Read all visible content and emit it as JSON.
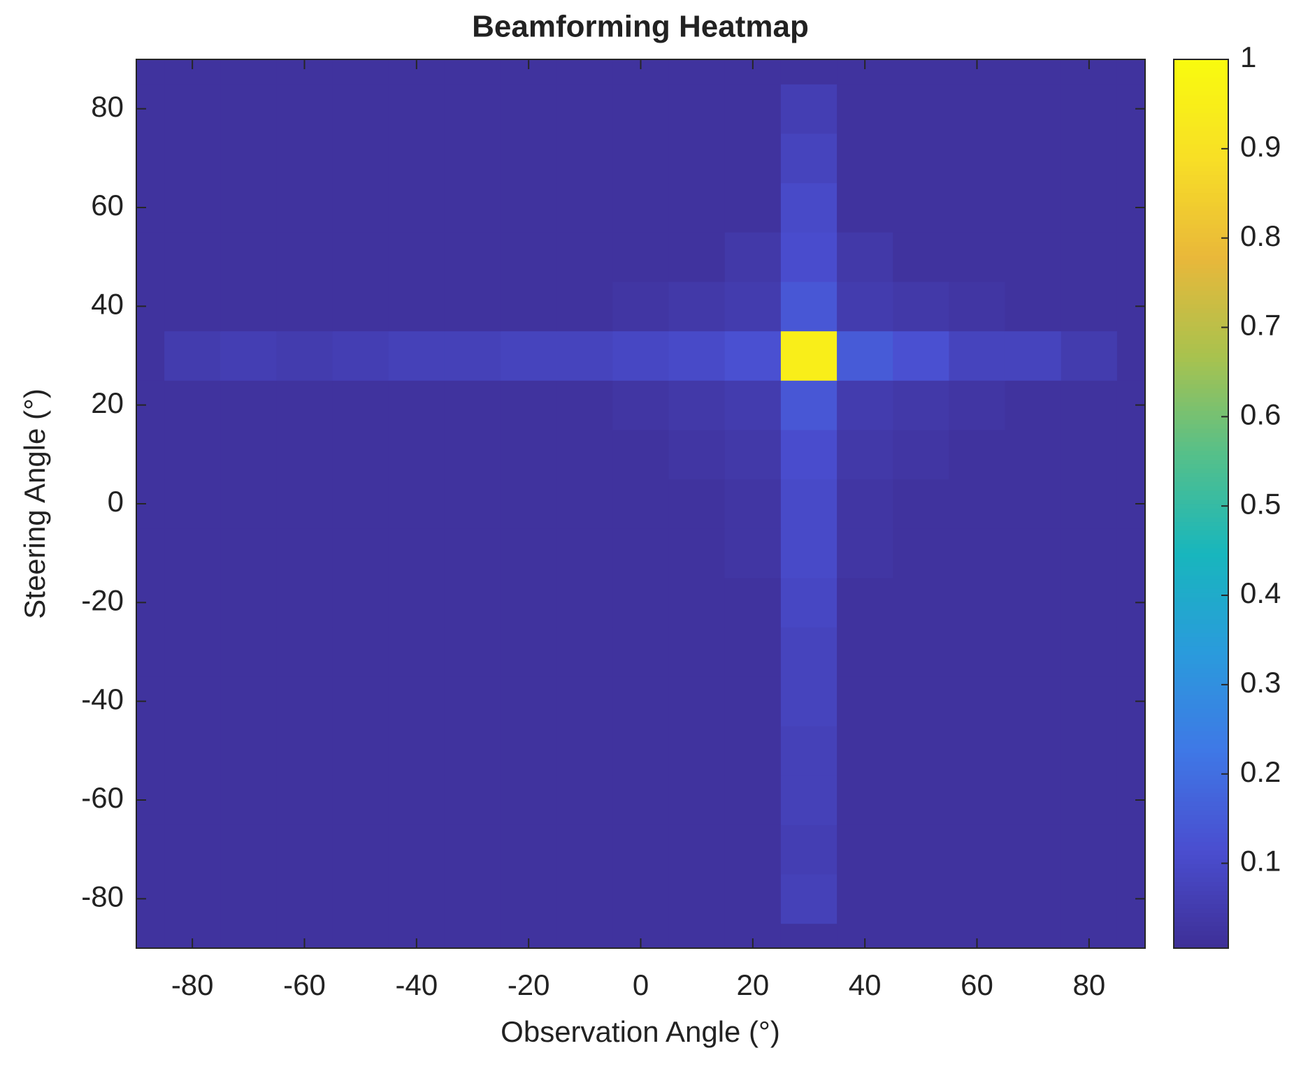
{
  "chart_data": {
    "type": "heatmap",
    "title": "Beamforming Heatmap",
    "xlabel": "Observation Angle (°)",
    "ylabel": "Steering Angle (°)",
    "x": [
      -90,
      -80,
      -70,
      -60,
      -50,
      -40,
      -30,
      -20,
      -10,
      0,
      10,
      20,
      30,
      40,
      50,
      60,
      70,
      80,
      90
    ],
    "y": [
      -90,
      -80,
      -70,
      -60,
      -50,
      -40,
      -30,
      -20,
      -10,
      0,
      10,
      20,
      30,
      40,
      50,
      60,
      70,
      80,
      90
    ],
    "z": [
      [
        0.02,
        0.02,
        0.02,
        0.02,
        0.02,
        0.02,
        0.02,
        0.02,
        0.02,
        0.02,
        0.02,
        0.02,
        0.02,
        0.02,
        0.02,
        0.02,
        0.02,
        0.02,
        0.02
      ],
      [
        0.02,
        0.02,
        0.02,
        0.02,
        0.02,
        0.02,
        0.02,
        0.02,
        0.02,
        0.02,
        0.02,
        0.02,
        0.07,
        0.02,
        0.02,
        0.02,
        0.02,
        0.02,
        0.02
      ],
      [
        0.02,
        0.02,
        0.02,
        0.02,
        0.02,
        0.02,
        0.02,
        0.02,
        0.02,
        0.02,
        0.02,
        0.02,
        0.06,
        0.02,
        0.02,
        0.02,
        0.02,
        0.02,
        0.02
      ],
      [
        0.02,
        0.02,
        0.02,
        0.02,
        0.02,
        0.02,
        0.02,
        0.02,
        0.02,
        0.02,
        0.02,
        0.02,
        0.07,
        0.02,
        0.02,
        0.02,
        0.02,
        0.02,
        0.02
      ],
      [
        0.02,
        0.02,
        0.02,
        0.02,
        0.02,
        0.02,
        0.02,
        0.02,
        0.02,
        0.02,
        0.02,
        0.02,
        0.07,
        0.02,
        0.02,
        0.02,
        0.02,
        0.02,
        0.02
      ],
      [
        0.02,
        0.02,
        0.02,
        0.02,
        0.02,
        0.02,
        0.02,
        0.02,
        0.02,
        0.02,
        0.02,
        0.02,
        0.08,
        0.02,
        0.02,
        0.02,
        0.02,
        0.02,
        0.02
      ],
      [
        0.02,
        0.02,
        0.02,
        0.02,
        0.02,
        0.02,
        0.02,
        0.02,
        0.02,
        0.02,
        0.02,
        0.02,
        0.08,
        0.02,
        0.02,
        0.02,
        0.02,
        0.02,
        0.02
      ],
      [
        0.02,
        0.02,
        0.02,
        0.02,
        0.02,
        0.02,
        0.02,
        0.02,
        0.02,
        0.02,
        0.02,
        0.02,
        0.09,
        0.02,
        0.02,
        0.02,
        0.02,
        0.02,
        0.02
      ],
      [
        0.02,
        0.02,
        0.02,
        0.02,
        0.02,
        0.02,
        0.02,
        0.02,
        0.02,
        0.02,
        0.02,
        0.03,
        0.1,
        0.03,
        0.02,
        0.02,
        0.02,
        0.02,
        0.02
      ],
      [
        0.02,
        0.02,
        0.02,
        0.02,
        0.02,
        0.02,
        0.02,
        0.02,
        0.02,
        0.02,
        0.02,
        0.03,
        0.1,
        0.03,
        0.02,
        0.02,
        0.02,
        0.02,
        0.02
      ],
      [
        0.02,
        0.02,
        0.02,
        0.02,
        0.02,
        0.02,
        0.02,
        0.02,
        0.02,
        0.02,
        0.03,
        0.04,
        0.11,
        0.04,
        0.03,
        0.02,
        0.02,
        0.02,
        0.02
      ],
      [
        0.02,
        0.02,
        0.02,
        0.02,
        0.02,
        0.02,
        0.02,
        0.02,
        0.02,
        0.03,
        0.04,
        0.05,
        0.14,
        0.05,
        0.04,
        0.03,
        0.02,
        0.02,
        0.02
      ],
      [
        0.02,
        0.05,
        0.06,
        0.05,
        0.06,
        0.07,
        0.07,
        0.08,
        0.08,
        0.09,
        0.1,
        0.12,
        0.95,
        0.15,
        0.12,
        0.08,
        0.08,
        0.05,
        0.02
      ],
      [
        0.02,
        0.02,
        0.02,
        0.02,
        0.02,
        0.02,
        0.02,
        0.02,
        0.02,
        0.03,
        0.04,
        0.05,
        0.14,
        0.05,
        0.04,
        0.03,
        0.02,
        0.02,
        0.02
      ],
      [
        0.02,
        0.02,
        0.02,
        0.02,
        0.02,
        0.02,
        0.02,
        0.02,
        0.02,
        0.02,
        0.02,
        0.04,
        0.11,
        0.04,
        0.02,
        0.02,
        0.02,
        0.02,
        0.02
      ],
      [
        0.02,
        0.02,
        0.02,
        0.02,
        0.02,
        0.02,
        0.02,
        0.02,
        0.02,
        0.02,
        0.02,
        0.02,
        0.1,
        0.02,
        0.02,
        0.02,
        0.02,
        0.02,
        0.02
      ],
      [
        0.02,
        0.02,
        0.02,
        0.02,
        0.02,
        0.02,
        0.02,
        0.02,
        0.02,
        0.02,
        0.02,
        0.02,
        0.08,
        0.02,
        0.02,
        0.02,
        0.02,
        0.02,
        0.02
      ],
      [
        0.02,
        0.02,
        0.02,
        0.02,
        0.02,
        0.02,
        0.02,
        0.02,
        0.02,
        0.02,
        0.02,
        0.02,
        0.06,
        0.02,
        0.02,
        0.02,
        0.02,
        0.02,
        0.02
      ],
      [
        0.02,
        0.02,
        0.02,
        0.02,
        0.02,
        0.02,
        0.02,
        0.02,
        0.02,
        0.02,
        0.02,
        0.02,
        0.02,
        0.02,
        0.02,
        0.02,
        0.02,
        0.02,
        0.02
      ]
    ],
    "xlim": [
      -90,
      90
    ],
    "ylim": [
      -90,
      90
    ],
    "xticks": [
      -80,
      -60,
      -40,
      -20,
      0,
      20,
      40,
      60,
      80
    ],
    "yticks": [
      -80,
      -60,
      -40,
      -20,
      0,
      20,
      40,
      60,
      80
    ],
    "clim": [
      0.005,
      1
    ],
    "cticks": [
      0.1,
      0.2,
      0.3,
      0.4,
      0.5,
      0.6,
      0.7,
      0.8,
      0.9,
      1
    ],
    "colormap": [
      "#3e2f96",
      "#4a4ed0",
      "#3f78e6",
      "#2a9bdc",
      "#18b6bd",
      "#55c08a",
      "#a9c24e",
      "#e9b83a",
      "#f8df26",
      "#f9fb0e"
    ]
  }
}
